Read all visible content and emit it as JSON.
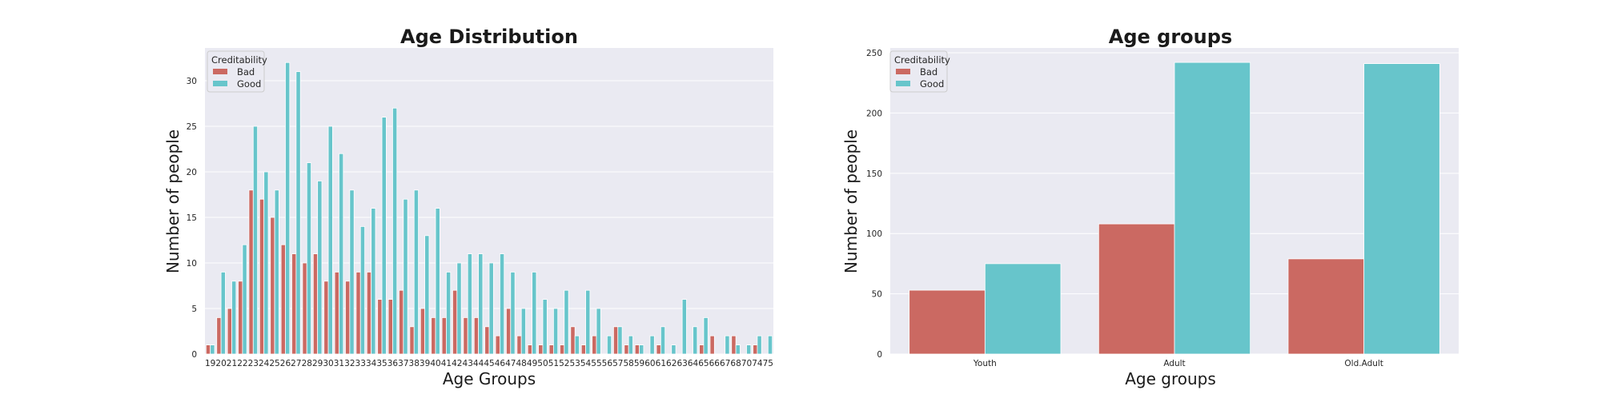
{
  "colors": {
    "bad": "#cb6962",
    "good": "#67c5cb",
    "plot_bg": "#eaeaf2",
    "grid": "#ffffff"
  },
  "chart_data": [
    {
      "type": "bar",
      "title": "Age Distribution",
      "xlabel": "Age Groups",
      "ylabel": "Number of people",
      "ylim": [
        0,
        33.6
      ],
      "yticks": [
        0,
        5,
        10,
        15,
        20,
        25,
        30
      ],
      "grid": true,
      "legend": {
        "title": "Creditability",
        "position": "top-left"
      },
      "categories": [
        "19",
        "20",
        "21",
        "22",
        "23",
        "24",
        "25",
        "26",
        "27",
        "28",
        "29",
        "30",
        "31",
        "32",
        "33",
        "34",
        "35",
        "36",
        "37",
        "38",
        "39",
        "40",
        "41",
        "42",
        "43",
        "44",
        "45",
        "46",
        "47",
        "48",
        "49",
        "50",
        "51",
        "52",
        "53",
        "54",
        "55",
        "56",
        "57",
        "58",
        "59",
        "60",
        "61",
        "62",
        "63",
        "64",
        "65",
        "66",
        "67",
        "68",
        "70",
        "74",
        "75"
      ],
      "series": [
        {
          "name": "Bad",
          "values": [
            1,
            4,
            5,
            8,
            18,
            17,
            15,
            12,
            11,
            10,
            11,
            8,
            9,
            8,
            9,
            9,
            6,
            6,
            7,
            3,
            5,
            4,
            4,
            7,
            4,
            4,
            3,
            2,
            5,
            2,
            1,
            1,
            1,
            1,
            3,
            1,
            2,
            0,
            3,
            1,
            1,
            0,
            1,
            0,
            0,
            0,
            1,
            2,
            0,
            2,
            0,
            1,
            0
          ]
        },
        {
          "name": "Good",
          "values": [
            1,
            9,
            8,
            12,
            25,
            20,
            18,
            32,
            31,
            21,
            19,
            25,
            22,
            18,
            14,
            16,
            26,
            27,
            17,
            18,
            13,
            16,
            9,
            10,
            11,
            11,
            10,
            11,
            9,
            5,
            9,
            6,
            5,
            7,
            2,
            7,
            5,
            2,
            3,
            2,
            1,
            2,
            3,
            1,
            6,
            3,
            4,
            0,
            2,
            1,
            1,
            2,
            2
          ]
        }
      ]
    },
    {
      "type": "bar",
      "title": "Age groups",
      "xlabel": "Age groups",
      "ylabel": "Number of people",
      "ylim": [
        0,
        254
      ],
      "yticks": [
        0,
        50,
        100,
        150,
        200,
        250
      ],
      "grid": true,
      "legend": {
        "title": "Creditability",
        "position": "top-left"
      },
      "categories": [
        "Youth",
        "Adult",
        "Old.Adult"
      ],
      "series": [
        {
          "name": "Bad",
          "values": [
            53,
            108,
            79
          ]
        },
        {
          "name": "Good",
          "values": [
            75,
            242,
            241
          ]
        }
      ]
    }
  ]
}
